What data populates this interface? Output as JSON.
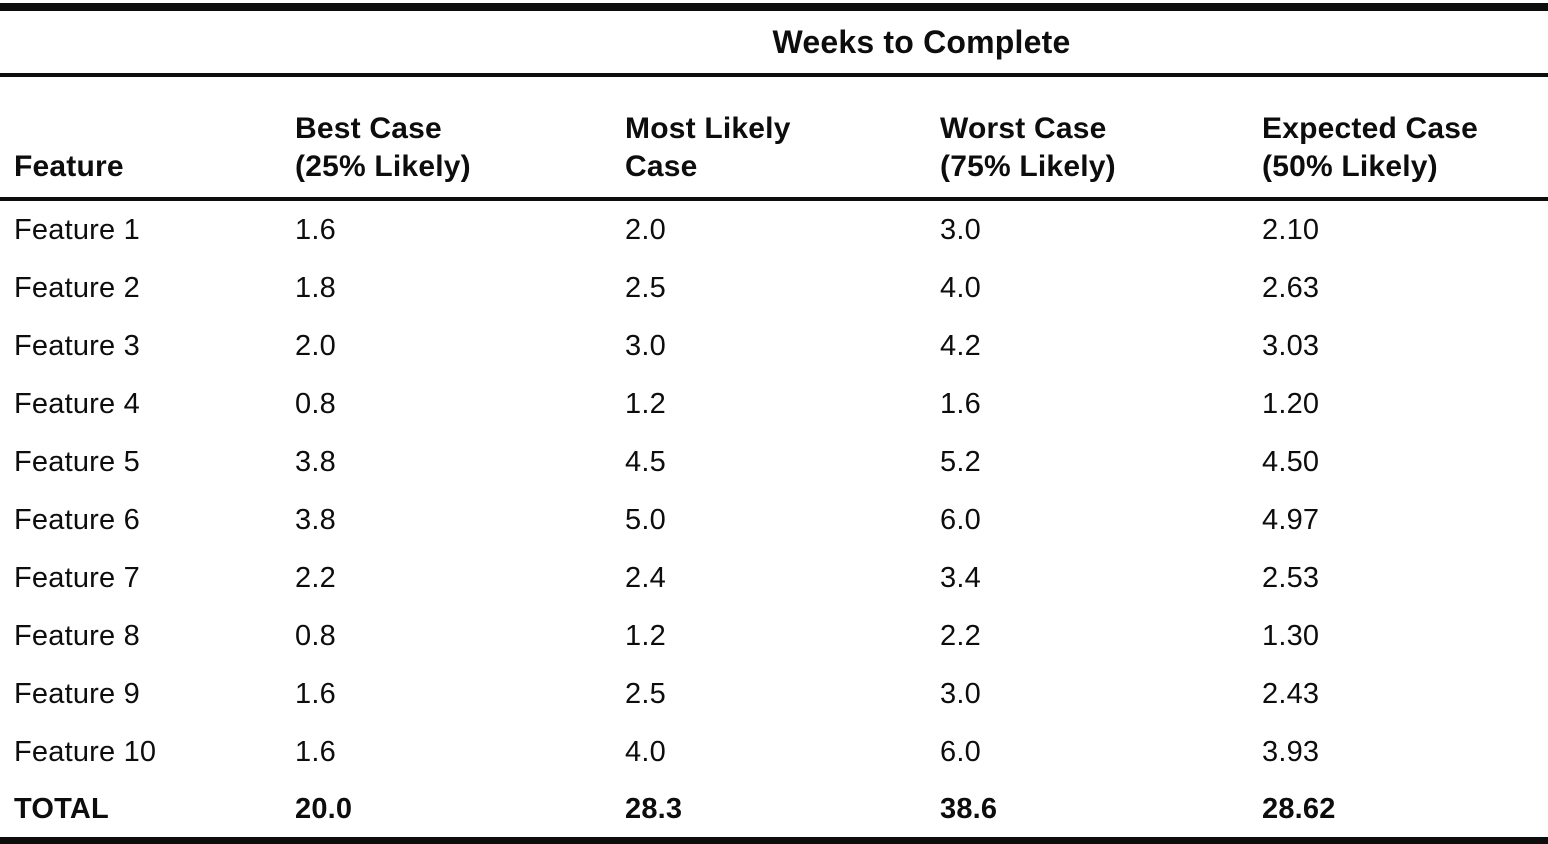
{
  "table": {
    "title": "Weeks to Complete",
    "columns": {
      "feature": "Feature",
      "best": "Best Case\n(25% Likely)",
      "most_likely": "Most Likely\nCase",
      "worst": "Worst Case\n(75% Likely)",
      "expected": "Expected Case\n(50% Likely)"
    },
    "rows": [
      {
        "feature": "Feature 1",
        "best": "1.6",
        "most_likely": "2.0",
        "worst": "3.0",
        "expected": "2.10"
      },
      {
        "feature": "Feature 2",
        "best": "1.8",
        "most_likely": "2.5",
        "worst": "4.0",
        "expected": "2.63"
      },
      {
        "feature": "Feature 3",
        "best": "2.0",
        "most_likely": "3.0",
        "worst": "4.2",
        "expected": "3.03"
      },
      {
        "feature": "Feature 4",
        "best": "0.8",
        "most_likely": "1.2",
        "worst": "1.6",
        "expected": "1.20"
      },
      {
        "feature": "Feature 5",
        "best": "3.8",
        "most_likely": "4.5",
        "worst": "5.2",
        "expected": "4.50"
      },
      {
        "feature": "Feature 6",
        "best": "3.8",
        "most_likely": "5.0",
        "worst": "6.0",
        "expected": "4.97"
      },
      {
        "feature": "Feature 7",
        "best": "2.2",
        "most_likely": "2.4",
        "worst": "3.4",
        "expected": "2.53"
      },
      {
        "feature": "Feature 8",
        "best": "0.8",
        "most_likely": "1.2",
        "worst": "2.2",
        "expected": "1.30"
      },
      {
        "feature": "Feature 9",
        "best": "1.6",
        "most_likely": "2.5",
        "worst": "3.0",
        "expected": "2.43"
      },
      {
        "feature": "Feature 10",
        "best": "1.6",
        "most_likely": "4.0",
        "worst": "6.0",
        "expected": "3.93"
      }
    ],
    "total": {
      "feature": "TOTAL",
      "best": "20.0",
      "most_likely": "28.3",
      "worst": "38.6",
      "expected": "28.62"
    },
    "ink_color": "#0d0d0d",
    "paper_color": "#ffffff"
  }
}
